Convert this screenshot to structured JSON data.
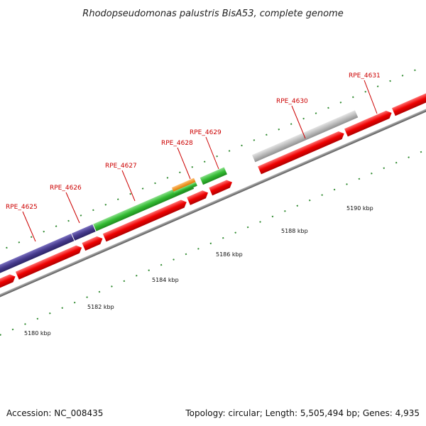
{
  "title": "Rhodopseudomonas palustris BisA53, complete genome",
  "accession": "Accession: NC_008435",
  "summary": "Topology: circular; Length: 5,505,494 bp; Genes: 4,935",
  "gene_labels": [
    {
      "id": "RPE_4625",
      "text": "RPE_4625"
    },
    {
      "id": "RPE_4626",
      "text": "RPE_4626"
    },
    {
      "id": "RPE_4627",
      "text": "RPE_4627"
    },
    {
      "id": "RPE_4628",
      "text": "RPE_4628"
    },
    {
      "id": "RPE_4629",
      "text": "RPE_4629"
    },
    {
      "id": "RPE_4630",
      "text": "RPE_4630"
    },
    {
      "id": "RPE_4631",
      "text": "RPE_4631"
    }
  ],
  "ruler_labels": [
    "5180 kbp",
    "5182 kbp",
    "5184 kbp",
    "5186 kbp",
    "5188 kbp",
    "5190 kbp"
  ],
  "colors": {
    "cds": "#ee1111",
    "purple": "#4a3f8f",
    "green": "#33bb33",
    "orange": "#ee8811",
    "grey": "#bbbbbb",
    "backbone": "#888888",
    "tick": "#2f8a2f",
    "label": "#cc0000"
  }
}
